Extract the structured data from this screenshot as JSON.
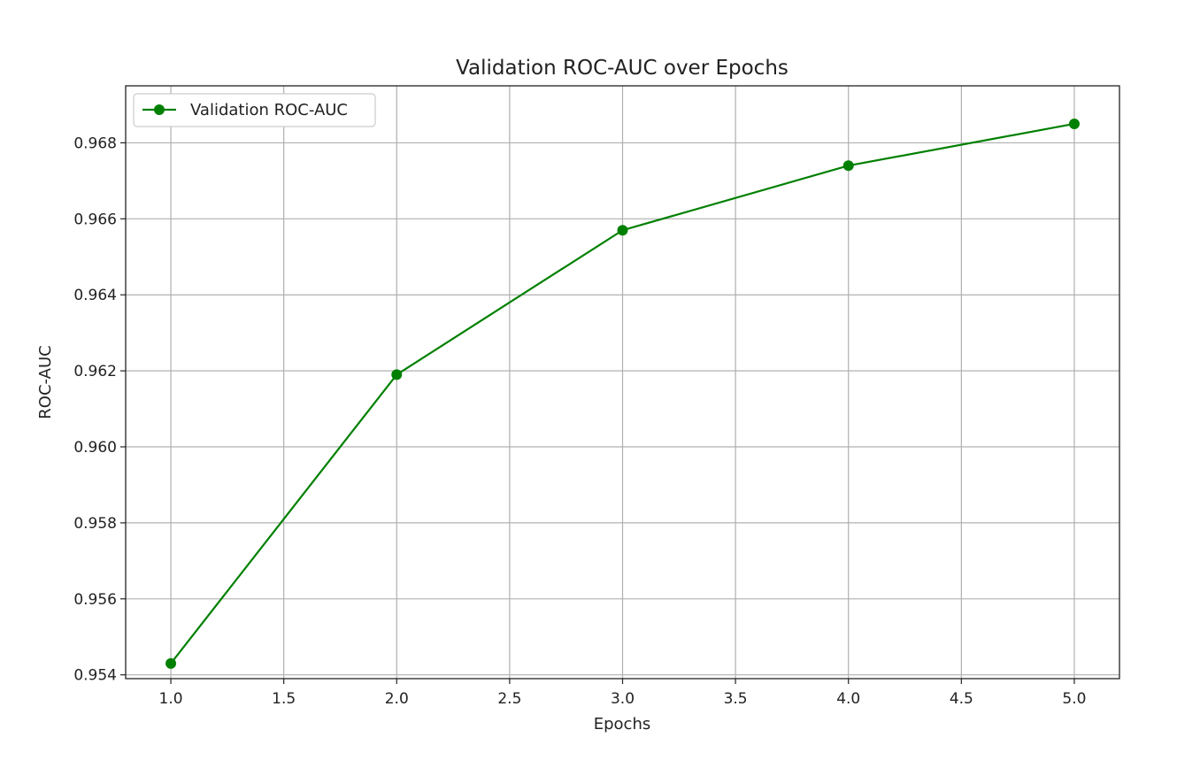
{
  "chart_data": {
    "type": "line",
    "title": "Validation ROC-AUC over Epochs",
    "xlabel": "Epochs",
    "ylabel": "ROC-AUC",
    "xlim": [
      0.8,
      5.2
    ],
    "ylim": [
      0.9539,
      0.9695
    ],
    "x_ticks": [
      1.0,
      1.5,
      2.0,
      2.5,
      3.0,
      3.5,
      4.0,
      4.5,
      5.0
    ],
    "x_tick_labels": [
      "1.0",
      "1.5",
      "2.0",
      "2.5",
      "3.0",
      "3.5",
      "4.0",
      "4.5",
      "5.0"
    ],
    "y_ticks": [
      0.954,
      0.956,
      0.958,
      0.96,
      0.962,
      0.964,
      0.966,
      0.968
    ],
    "y_tick_labels": [
      "0.954",
      "0.956",
      "0.958",
      "0.960",
      "0.962",
      "0.964",
      "0.966",
      "0.968"
    ],
    "grid": true,
    "legend_position": "top-left",
    "series": [
      {
        "name": "Validation ROC-AUC",
        "color": "#008000",
        "marker": "circle",
        "x": [
          1,
          2,
          3,
          4,
          5
        ],
        "y": [
          0.9543,
          0.9619,
          0.9657,
          0.9674,
          0.9685
        ]
      }
    ]
  }
}
